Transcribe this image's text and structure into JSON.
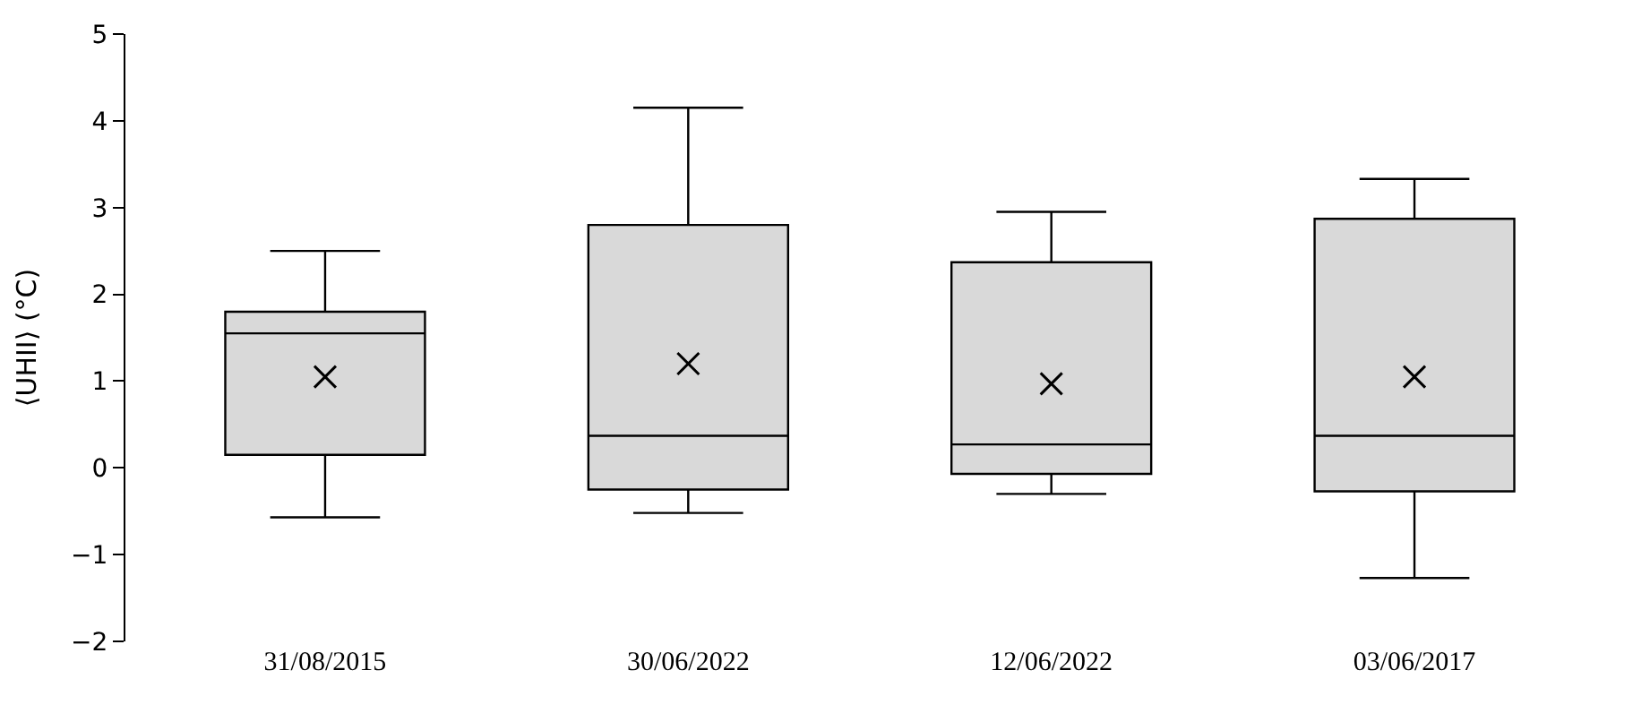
{
  "chart_data": {
    "type": "box",
    "ylabel": "⟨UHII⟩ (°C)",
    "categories": [
      "31/08/2015",
      "30/06/2022",
      "12/06/2022",
      "03/06/2017"
    ],
    "boxes": [
      {
        "low": -0.57,
        "q1": 0.15,
        "median": 1.55,
        "q3": 1.8,
        "high": 2.5,
        "mean": 1.05
      },
      {
        "low": -0.52,
        "q1": -0.25,
        "median": 0.37,
        "q3": 2.8,
        "high": 4.15,
        "mean": 1.2
      },
      {
        "low": -0.3,
        "q1": -0.07,
        "median": 0.27,
        "q3": 2.37,
        "high": 2.95,
        "mean": 0.97
      },
      {
        "low": -1.27,
        "q1": -0.27,
        "median": 0.37,
        "q3": 2.87,
        "high": 3.33,
        "mean": 1.05
      }
    ],
    "color": "#d9d9d9",
    "ylim": [
      -2,
      5
    ],
    "yticks": [
      {
        "value": -2,
        "label": "−2"
      },
      {
        "value": -1,
        "label": "−1"
      },
      0,
      1,
      2,
      3,
      4,
      5
    ],
    "marker": "cross"
  }
}
